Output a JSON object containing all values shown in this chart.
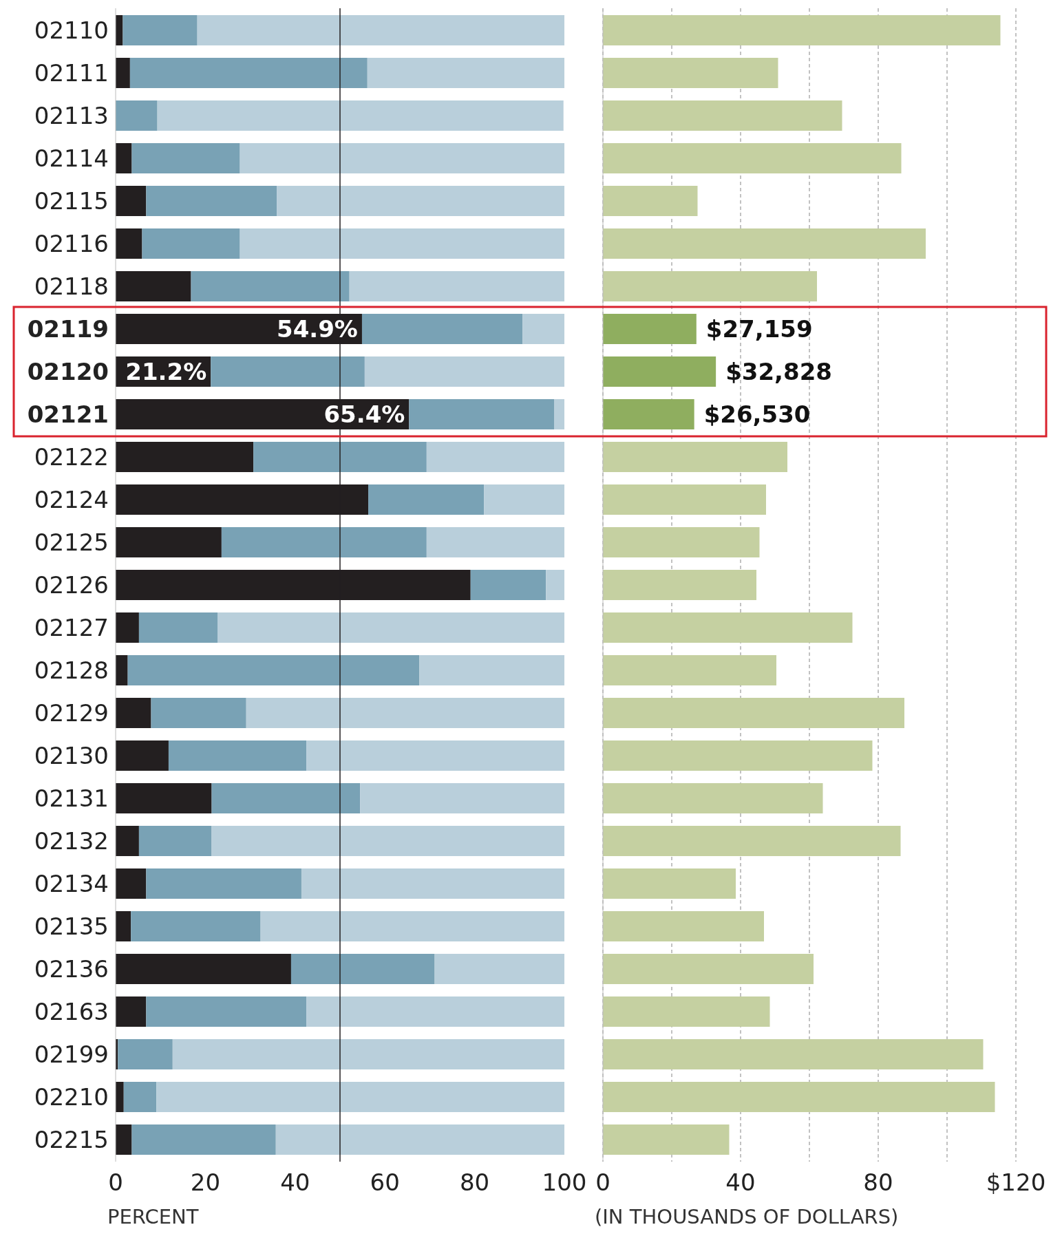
{
  "chart_data": [
    {
      "type": "bar",
      "orientation": "horizontal",
      "stacked": true,
      "categories": [
        "02110",
        "02111",
        "02113",
        "02114",
        "02115",
        "02116",
        "02118",
        "02119",
        "02120",
        "02121",
        "02122",
        "02124",
        "02125",
        "02126",
        "02127",
        "02128",
        "02129",
        "02130",
        "02131",
        "02132",
        "02134",
        "02135",
        "02136",
        "02163",
        "02199",
        "02210",
        "02215"
      ],
      "series": [
        {
          "color": "#231f20",
          "values": [
            1.6,
            3.2,
            null,
            3.6,
            6.8,
            5.9,
            16.8,
            54.9,
            21.2,
            65.4,
            30.7,
            56.3,
            23.6,
            79.1,
            5.2,
            2.7,
            7.9,
            11.8,
            21.4,
            5.2,
            6.8,
            3.4,
            39.1,
            6.8,
            0.5,
            1.8,
            3.6
          ],
          "value_labels": [
            null,
            null,
            null,
            null,
            null,
            null,
            null,
            "54.9%",
            "21.2%",
            "65.4%",
            null,
            null,
            null,
            null,
            null,
            null,
            null,
            null,
            null,
            null,
            null,
            null,
            null,
            null,
            null,
            null,
            null
          ]
        },
        {
          "color": "#79a2b5",
          "values": [
            16.6,
            52.9,
            9.3,
            24.1,
            29.1,
            21.8,
            35.3,
            35.8,
            34.3,
            32.3,
            38.6,
            25.8,
            45.7,
            16.8,
            17.5,
            65.0,
            21.2,
            30.7,
            33.1,
            16.2,
            34.6,
            28.9,
            32.0,
            35.7,
            12.2,
            7.3,
            32.1
          ]
        },
        {
          "color": "#b9cfdb",
          "values": [
            81.8,
            43.9,
            90.5,
            72.3,
            64.1,
            72.3,
            47.9,
            9.3,
            44.5,
            2.3,
            30.7,
            17.9,
            30.7,
            4.1,
            77.3,
            32.3,
            70.9,
            57.5,
            45.5,
            78.6,
            58.6,
            67.7,
            28.9,
            57.5,
            87.3,
            90.9,
            64.3
          ]
        }
      ],
      "xlim": [
        0,
        100
      ],
      "xticks": [
        0,
        20,
        40,
        60,
        80,
        100
      ],
      "xlabel": "PERCENT",
      "ref_lines": [
        {
          "axis": "x",
          "value": 50,
          "color": "#231f20"
        }
      ]
    },
    {
      "type": "bar",
      "orientation": "horizontal",
      "categories": [
        "02110",
        "02111",
        "02113",
        "02114",
        "02115",
        "02116",
        "02118",
        "02119",
        "02120",
        "02121",
        "02122",
        "02124",
        "02125",
        "02126",
        "02127",
        "02128",
        "02129",
        "02130",
        "02131",
        "02132",
        "02134",
        "02135",
        "02136",
        "02163",
        "02199",
        "02210",
        "02215"
      ],
      "values": [
        115.5,
        50.9,
        69.5,
        86.7,
        27.5,
        93.8,
        62.2,
        27.159,
        32.828,
        26.53,
        53.6,
        47.4,
        45.5,
        44.6,
        72.5,
        50.4,
        87.6,
        78.3,
        63.9,
        86.5,
        38.6,
        46.8,
        61.2,
        48.5,
        110.5,
        113.9,
        36.7
      ],
      "colors": [
        "#c5d0a1",
        "#c5d0a1",
        "#c5d0a1",
        "#c5d0a1",
        "#c5d0a1",
        "#c5d0a1",
        "#c5d0a1",
        "#8fae5f",
        "#8fae5f",
        "#8fae5f",
        "#c5d0a1",
        "#c5d0a1",
        "#c5d0a1",
        "#c5d0a1",
        "#c5d0a1",
        "#c5d0a1",
        "#c5d0a1",
        "#c5d0a1",
        "#c5d0a1",
        "#c5d0a1",
        "#c5d0a1",
        "#c5d0a1",
        "#c5d0a1",
        "#c5d0a1",
        "#c5d0a1",
        "#c5d0a1",
        "#c5d0a1"
      ],
      "annotations": [
        {
          "text": "$27,159",
          "x": 27.159,
          "y": "02119"
        },
        {
          "text": "$32,828",
          "x": 32.828,
          "y": "02120"
        },
        {
          "text": "$26,530",
          "x": 26.53,
          "y": "02121"
        }
      ],
      "xlim": [
        0,
        120
      ],
      "xticks": [
        0,
        {
          "value": 20,
          "label": null
        },
        40,
        {
          "value": 60,
          "label": null
        },
        80,
        {
          "value": 100,
          "label": null
        },
        {
          "value": 120,
          "label": "$120"
        }
      ],
      "xlabel": "(IN THOUSANDS OF DOLLARS)",
      "grid": "x",
      "tick_labels": "x"
    }
  ]
}
